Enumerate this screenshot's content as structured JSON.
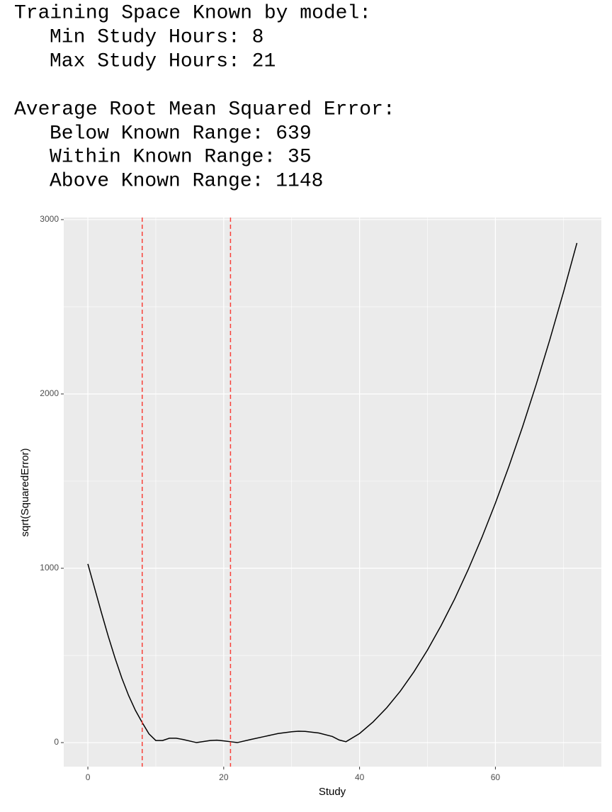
{
  "summary": {
    "training_heading": "Training Space Known by model:",
    "training_lines": [
      "Min Study Hours: 8",
      "Max Study Hours: 21"
    ],
    "error_heading": "Average Root Mean Squared Error:",
    "error_lines": [
      "Below Known Range: 639",
      "Within Known Range: 35",
      "Above Known Range: 1148"
    ]
  },
  "chart_data": {
    "type": "line",
    "xlabel": "Study",
    "ylabel": "sqrt(SquaredError)",
    "xlim": [
      -3.55,
      75.6
    ],
    "ylim": [
      -138,
      3012
    ],
    "xticks": [
      0,
      20,
      40,
      60
    ],
    "yticks": [
      0,
      1000,
      2000,
      3000
    ],
    "grid": true,
    "x": [
      0,
      1,
      2,
      3,
      4,
      5,
      6,
      7,
      8,
      9,
      10,
      11,
      12,
      13,
      14,
      16,
      18,
      19,
      20,
      21,
      22,
      24,
      26,
      28,
      30,
      31,
      32,
      34,
      36,
      37,
      38,
      40,
      42,
      44,
      46,
      48,
      50,
      52,
      54,
      56,
      58,
      60,
      62,
      64,
      66,
      68,
      70,
      72
    ],
    "series": [
      {
        "color": "#000000",
        "values": [
          1025,
          885,
          745,
          610,
          485,
          370,
          270,
          185,
          115,
          50,
          12,
          12,
          25,
          25,
          18,
          0,
          12,
          14,
          10,
          5,
          0,
          18,
          35,
          52,
          62,
          65,
          64,
          55,
          35,
          15,
          5,
          52,
          119,
          200,
          295,
          406,
          531,
          671,
          824,
          993,
          1176,
          1374,
          1586,
          1812,
          2054,
          2310,
          2581,
          2866
        ]
      }
    ],
    "vlines": [
      8,
      21
    ],
    "vline_color": "#f8413a"
  }
}
